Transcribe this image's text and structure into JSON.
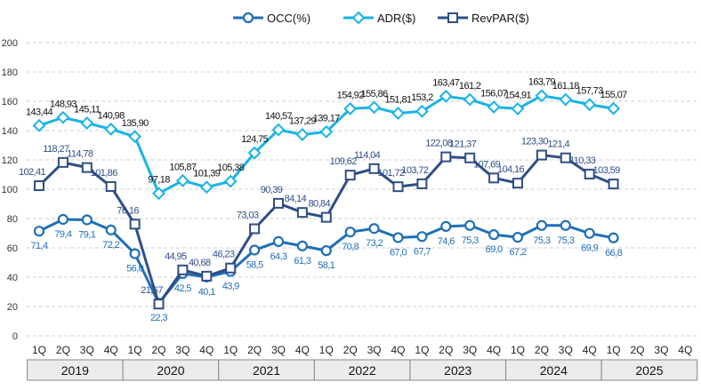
{
  "chart_data": {
    "type": "line",
    "title": "",
    "ylim": [
      0,
      200
    ],
    "yticks": [
      0,
      20,
      40,
      60,
      80,
      100,
      120,
      140,
      160,
      180,
      200
    ],
    "grid": true,
    "legend_position": "top-center",
    "quarters": [
      "1Q",
      "2Q",
      "3Q",
      "4Q",
      "1Q",
      "2Q",
      "3Q",
      "4Q",
      "1Q",
      "2Q",
      "3Q",
      "4Q",
      "1Q",
      "2Q",
      "3Q",
      "4Q",
      "1Q",
      "2Q",
      "3Q",
      "4Q",
      "1Q",
      "2Q",
      "3Q",
      "4Q",
      "1Q",
      "2Q",
      "3Q",
      "4Q"
    ],
    "years": [
      "2019",
      "2020",
      "2021",
      "2022",
      "2023",
      "2024",
      "2025"
    ],
    "series": [
      {
        "name": "OCC(%)",
        "color": "#1f6fb8",
        "marker": "circle",
        "label_color": "#1f6fb8",
        "label_pos": "below",
        "labels": [
          "71,4",
          "79,4",
          "79,1",
          "72,2",
          "56,0",
          "22,3",
          "42,5",
          "40,1",
          "43,9",
          "58,5",
          "64,3",
          "61,3",
          "58,1",
          "70,8",
          "73,2",
          "67,0",
          "67,7",
          "74,6",
          "75,3",
          "69,0",
          "67,2",
          "75,3",
          "75,3",
          "69,9",
          "66,8"
        ]
      },
      {
        "name": "ADR($)",
        "color": "#1ab3e6",
        "marker": "diamond",
        "label_color": "#111111",
        "label_pos": "above",
        "labels": [
          "143,44",
          "148,93",
          "145,11",
          "140,98",
          "135,90",
          "97,18",
          "105,87",
          "101,39",
          "105,38",
          "124,75",
          "140,57",
          "137,29",
          "139,17",
          "154,92",
          "155,86",
          "151,81",
          "153,2",
          "163,47",
          "161,2",
          "156,07",
          "154,91",
          "163,79",
          "161,18",
          "157,73",
          "155,07"
        ]
      },
      {
        "name": "RevPAR($)",
        "color": "#2f4e86",
        "marker": "square",
        "label_color": "#2f4e86",
        "label_pos": "above",
        "labels": [
          "102,41",
          "118,27",
          "114,78",
          "101,86",
          "76,16",
          "21,67",
          "44,95",
          "40,68",
          "46,23",
          "73,03",
          "90,39",
          "84,14",
          "80,84",
          "109,62",
          "114,04",
          "101,72",
          "103,72",
          "122,08",
          "121,37",
          "107,69",
          "104,16",
          "123,30",
          "121,4",
          "110,33",
          "103,59"
        ]
      }
    ]
  }
}
